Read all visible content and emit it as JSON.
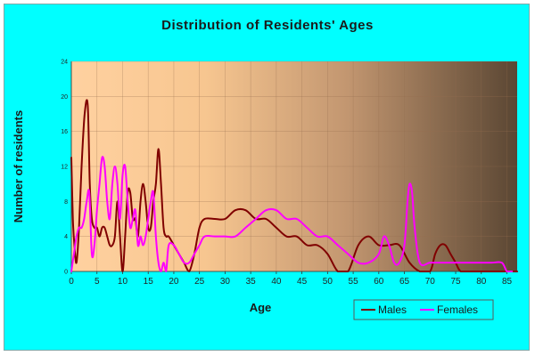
{
  "chart_data": {
    "type": "line",
    "title": "Distribution of Residents' Ages",
    "xlabel": "Age",
    "ylabel": "Number of residents",
    "xlim": [
      0,
      87
    ],
    "ylim": [
      0,
      24
    ],
    "x_ticks": [
      0,
      5,
      10,
      15,
      20,
      25,
      30,
      35,
      40,
      45,
      50,
      55,
      60,
      65,
      70,
      75,
      80,
      85
    ],
    "y_ticks": [
      0,
      4,
      8,
      12,
      16,
      20,
      24
    ],
    "grid": true,
    "legend_position": "bottom-right",
    "series": [
      {
        "name": "Males",
        "color": "#800000",
        "x": [
          0,
          0.3,
          0.6,
          1,
          1.5,
          2,
          2.6,
          3.2,
          3.6,
          4,
          4.5,
          5,
          5.5,
          6,
          6.5,
          7,
          7.5,
          8,
          8.5,
          9,
          9.5,
          10,
          10.5,
          11,
          11.5,
          12,
          12.5,
          13,
          13.5,
          14,
          14.5,
          15,
          15.5,
          16,
          16.5,
          17,
          17.5,
          18,
          18.5,
          19,
          20,
          21,
          22,
          23,
          24,
          25,
          26,
          28,
          30,
          32,
          34,
          36,
          38,
          40,
          42,
          44,
          46,
          48,
          50,
          52,
          54,
          56,
          58,
          60,
          62,
          64,
          66,
          68,
          70,
          71,
          72,
          73,
          74,
          75,
          76,
          78,
          80,
          82,
          84,
          86,
          87
        ],
        "y": [
          13,
          6,
          3,
          1,
          5,
          12,
          18,
          19,
          10,
          6,
          5,
          5,
          4,
          5,
          5,
          4,
          3,
          3,
          4,
          8,
          4,
          0,
          4,
          9,
          9,
          6,
          6,
          4,
          8,
          10,
          8,
          5,
          5,
          8,
          10,
          14,
          10,
          5,
          4,
          4,
          3,
          2,
          1,
          0,
          2,
          5,
          6,
          6,
          6,
          7,
          7,
          6,
          6,
          5,
          4,
          4,
          3,
          3,
          2,
          0,
          0,
          3,
          4,
          3,
          3,
          3,
          1,
          0,
          0,
          2,
          3,
          3,
          2,
          1,
          0,
          0,
          0,
          0,
          0,
          0,
          0
        ]
      },
      {
        "name": "Females",
        "color": "#ff00ff",
        "x": [
          0,
          0.5,
          1,
          1.5,
          2,
          2.5,
          3,
          3.5,
          4,
          4.5,
          5,
          5.5,
          6,
          6.5,
          7,
          7.5,
          8,
          8.5,
          9,
          9.5,
          10,
          10.5,
          11,
          11.5,
          12,
          12.5,
          13,
          13.5,
          14,
          14.5,
          15,
          15.5,
          16,
          16.5,
          17,
          17.5,
          18,
          18.5,
          19,
          20,
          21,
          22,
          23,
          24,
          25,
          26,
          28,
          30,
          32,
          34,
          36,
          38,
          40,
          42,
          44,
          46,
          48,
          50,
          52,
          54,
          56,
          58,
          60,
          61,
          62,
          63,
          64,
          65,
          65.6,
          66,
          66.5,
          67,
          68,
          70,
          72,
          74,
          76,
          78,
          80,
          82,
          84,
          85,
          86
        ],
        "y": [
          0,
          2,
          4,
          5,
          5,
          6,
          8,
          9,
          2,
          3,
          7,
          10,
          13,
          12,
          8,
          6,
          10,
          12,
          10,
          6,
          11,
          12,
          8,
          5,
          6,
          7,
          3,
          4,
          3,
          4,
          6,
          8,
          9,
          4,
          1,
          0,
          1,
          0,
          3,
          3,
          2,
          1,
          1,
          2,
          3,
          4,
          4,
          4,
          4,
          5,
          6,
          7,
          7,
          6,
          6,
          5,
          4,
          4,
          3,
          2,
          1,
          1,
          2,
          4,
          3,
          1,
          1,
          3,
          8,
          10,
          9,
          5,
          1,
          1,
          1,
          1,
          1,
          1,
          1,
          1,
          1,
          0,
          0
        ]
      }
    ]
  }
}
